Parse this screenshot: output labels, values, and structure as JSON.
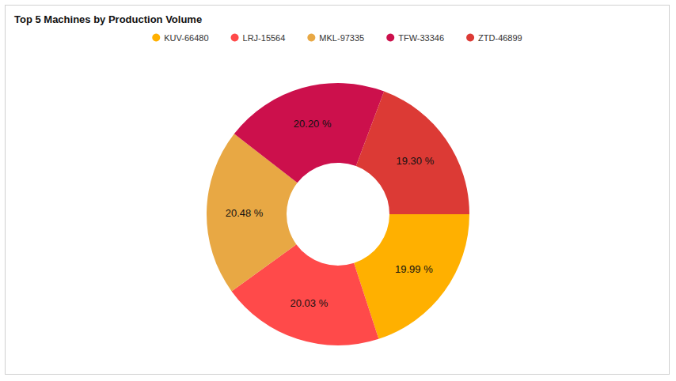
{
  "chart_data": {
    "type": "pie",
    "title": "Top 5 Machines by Production Volume",
    "categories": [
      "KUV-66480",
      "LRJ-15564",
      "MKL-97335",
      "TFW-33346",
      "ZTD-46899"
    ],
    "values": [
      19.99,
      20.03,
      20.48,
      20.2,
      19.3
    ],
    "value_labels": [
      "19.99 %",
      "20.03 %",
      "20.48 %",
      "20.20 %",
      "19.30 %"
    ],
    "colors": [
      "#ffb000",
      "#ff4a4a",
      "#e8a844",
      "#cc104c",
      "#dc3a35"
    ],
    "data_labels": true,
    "legend": "top"
  }
}
